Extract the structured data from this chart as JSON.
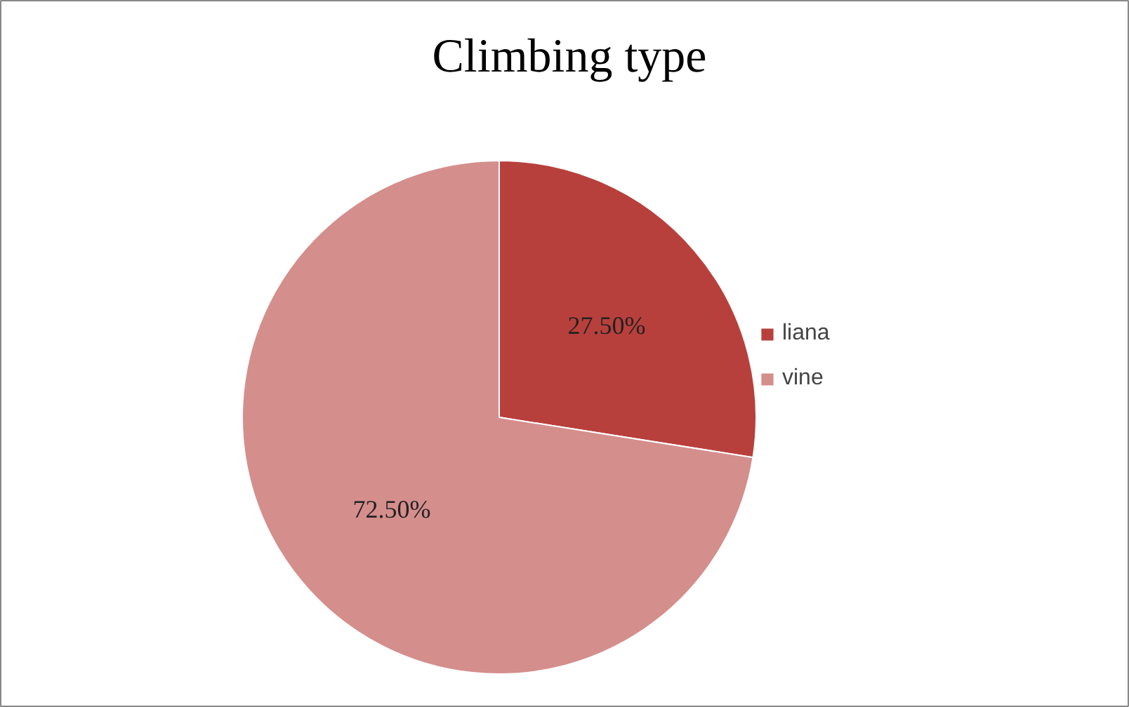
{
  "chart_data": {
    "type": "pie",
    "title": "Climbing type",
    "categories": [
      "liana",
      "vine"
    ],
    "values": [
      27.5,
      72.5
    ],
    "colors": [
      "#b8403c",
      "#d48e8c"
    ],
    "value_labels": [
      "27.50%",
      "72.50%"
    ],
    "legend": "right"
  }
}
